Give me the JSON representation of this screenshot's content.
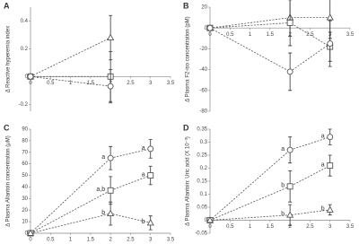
{
  "chart_data": [
    {
      "type": "line",
      "label": "A",
      "y_label": "Δ Reactive hyperemia index",
      "x": [
        0,
        2
      ],
      "xlim": [
        0,
        3.5
      ],
      "xticks": [
        0,
        0.5,
        1,
        1.5,
        2,
        2.5,
        3,
        3.5
      ],
      "ylim": [
        -0.25,
        0.5
      ],
      "yticks": [
        -0.2,
        0,
        0.2,
        0.4
      ],
      "color": "#555555",
      "series": [
        {
          "marker": "triangle",
          "values": [
            0,
            0.28
          ],
          "errors": [
            0,
            0.16
          ]
        },
        {
          "marker": "square",
          "values": [
            0,
            0.0
          ],
          "errors": [
            0,
            0.18
          ]
        },
        {
          "marker": "circle",
          "values": [
            0,
            -0.07
          ],
          "errors": [
            0,
            0.12
          ]
        }
      ]
    },
    {
      "type": "line",
      "label": "B",
      "y_label": "Δ Plasma F2-iso concentration (pM)",
      "x": [
        0,
        2,
        3
      ],
      "xlim": [
        0,
        3.5
      ],
      "xticks": [
        0,
        0.5,
        1,
        1.5,
        2,
        2.5,
        3,
        3.5
      ],
      "ylim": [
        -80,
        20
      ],
      "yticks": [
        -80,
        -60,
        -40,
        -20,
        0,
        20
      ],
      "color": "#555555",
      "series": [
        {
          "marker": "triangle",
          "values": [
            0,
            10,
            10
          ],
          "errors": [
            0,
            18,
            20
          ]
        },
        {
          "marker": "square",
          "values": [
            0,
            5,
            -18
          ],
          "errors": [
            0,
            22,
            14
          ]
        },
        {
          "marker": "circle",
          "values": [
            0,
            -42,
            -15
          ],
          "errors": [
            0,
            18,
            22
          ]
        }
      ]
    },
    {
      "type": "line",
      "label": "C",
      "y_label": "Δ Plasma Allantoin concentration (μM)",
      "x": [
        0,
        2,
        3
      ],
      "xlim": [
        0,
        3.5
      ],
      "xticks": [
        0,
        0.5,
        1,
        1.5,
        2,
        2.5,
        3,
        3.5
      ],
      "ylim": [
        0,
        90
      ],
      "yticks": [
        0,
        10,
        20,
        30,
        40,
        50,
        60,
        70,
        80,
        90
      ],
      "color": "#555555",
      "series": [
        {
          "marker": "circle",
          "values": [
            0,
            65,
            73
          ],
          "errors": [
            0,
            10,
            8
          ],
          "point_labels": [
            null,
            "a",
            "a"
          ]
        },
        {
          "marker": "square",
          "values": [
            0,
            37,
            50
          ],
          "errors": [
            0,
            12,
            8
          ],
          "point_labels": [
            null,
            "a,b",
            "a"
          ]
        },
        {
          "marker": "triangle",
          "values": [
            0,
            17,
            9
          ],
          "errors": [
            0,
            10,
            6
          ],
          "point_labels": [
            null,
            "b",
            "b"
          ]
        }
      ]
    },
    {
      "type": "line",
      "label": "D",
      "y_label": "Δ Plasma Allantoin: Uric acid (X 10⁻³)",
      "x": [
        0,
        2,
        3
      ],
      "xlim": [
        0,
        3.5
      ],
      "xticks": [
        0,
        0.5,
        1,
        1.5,
        2,
        2.5,
        3,
        3.5
      ],
      "ylim": [
        -0.05,
        0.35
      ],
      "yticks": [
        -0.05,
        0,
        0.05,
        0.1,
        0.15,
        0.2,
        0.25,
        0.3,
        0.35
      ],
      "color": "#555555",
      "series": [
        {
          "marker": "circle",
          "values": [
            0,
            0.27,
            0.32
          ],
          "errors": [
            0,
            0.05,
            0.03
          ],
          "point_labels": [
            null,
            "a",
            "a"
          ]
        },
        {
          "marker": "square",
          "values": [
            0,
            0.13,
            0.21
          ],
          "errors": [
            0,
            0.06,
            0.04
          ],
          "point_labels": [
            null,
            "b",
            "a"
          ]
        },
        {
          "marker": "triangle",
          "values": [
            0,
            0.02,
            0.04
          ],
          "errors": [
            0,
            0.04,
            0.02
          ],
          "point_labels": [
            null,
            "b",
            "b"
          ]
        }
      ]
    }
  ]
}
